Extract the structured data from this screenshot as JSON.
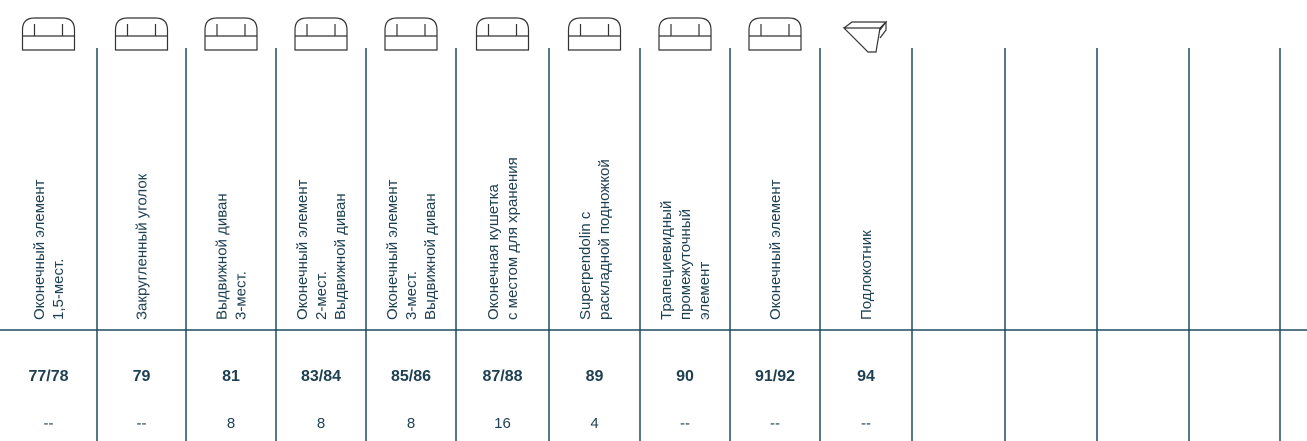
{
  "columns": [
    {
      "label": [
        "Оконечный элемент",
        "1,5-мест."
      ],
      "code": "77/78",
      "qty": "--"
    },
    {
      "label": [
        "Закругленный уголок"
      ],
      "code": "79",
      "qty": "--"
    },
    {
      "label": [
        "Выдвижной диван",
        "3-мест."
      ],
      "code": "81",
      "qty": "8"
    },
    {
      "label": [
        "Оконечный элемент",
        "2-мест.",
        "Выдвижной диван"
      ],
      "code": "83/84",
      "qty": "8"
    },
    {
      "label": [
        "Оконечный элемент",
        "3-мест.",
        "Выдвижной диван"
      ],
      "code": "85/86",
      "qty": "8"
    },
    {
      "label": [
        "Оконечная кушетка",
        "с местом для хранения"
      ],
      "code": "87/88",
      "qty": "16"
    },
    {
      "label": [
        "Superpendolin с",
        "раскладной подножкой"
      ],
      "code": "89",
      "qty": "4"
    },
    {
      "label": [
        "Трапециевидный",
        "промежуточный",
        "элемент"
      ],
      "code": "90",
      "qty": "--"
    },
    {
      "label": [
        "Оконечный элемент"
      ],
      "code": "91/92",
      "qty": "--"
    },
    {
      "label": [
        "Подлокотник"
      ],
      "code": "94",
      "qty": "--"
    }
  ]
}
